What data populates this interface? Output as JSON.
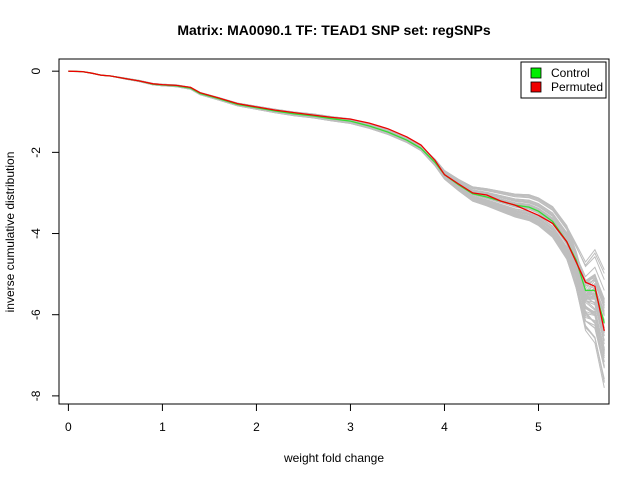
{
  "chart_data": {
    "type": "line",
    "title": "Matrix: MA0090.1 TF: TEAD1 SNP set: regSNPs",
    "xlabel": "weight fold change",
    "ylabel": "inverse cumulative distribution",
    "xlim": [
      -0.1,
      5.75
    ],
    "ylim": [
      -8.2,
      0.3
    ],
    "x_ticks": [
      0,
      1,
      2,
      3,
      4,
      5
    ],
    "y_ticks": [
      0,
      -2,
      -4,
      -6,
      -8
    ],
    "x_tick_labels": [
      "0",
      "1",
      "2",
      "3",
      "4",
      "5"
    ],
    "y_tick_labels": [
      "0",
      "-2",
      "-4",
      "-6",
      "-8"
    ],
    "legend": {
      "position": "top-right",
      "entries": [
        {
          "label": "Control",
          "color": "#00ee00"
        },
        {
          "label": "Permuted",
          "color": "#ee0000"
        }
      ]
    },
    "background_series": {
      "count": 60,
      "color": "#bebebe",
      "description_note": ""
    },
    "series": [
      {
        "name": "Control",
        "color": "#33dd33",
        "x": [
          0.0,
          0.15,
          0.25,
          0.35,
          0.45,
          0.6,
          0.75,
          0.9,
          1.0,
          1.15,
          1.3,
          1.4,
          1.6,
          1.8,
          2.0,
          2.2,
          2.4,
          2.6,
          2.8,
          3.0,
          3.2,
          3.4,
          3.6,
          3.75,
          3.9,
          4.0,
          4.15,
          4.3,
          4.45,
          4.6,
          4.75,
          4.9,
          5.0,
          5.15,
          5.3,
          5.4,
          5.5,
          5.6,
          5.7
        ],
        "values": [
          0.0,
          -0.01,
          -0.05,
          -0.1,
          -0.12,
          -0.18,
          -0.24,
          -0.32,
          -0.34,
          -0.36,
          -0.42,
          -0.55,
          -0.68,
          -0.82,
          -0.9,
          -0.98,
          -1.05,
          -1.1,
          -1.17,
          -1.23,
          -1.35,
          -1.5,
          -1.7,
          -1.9,
          -2.25,
          -2.55,
          -2.8,
          -3.02,
          -3.1,
          -3.2,
          -3.3,
          -3.35,
          -3.45,
          -3.7,
          -4.2,
          -4.65,
          -5.4,
          -5.4,
          -6.2
        ]
      },
      {
        "name": "Permuted",
        "color": "#ee0000",
        "x": [
          0.0,
          0.15,
          0.25,
          0.35,
          0.45,
          0.6,
          0.75,
          0.9,
          1.0,
          1.15,
          1.3,
          1.4,
          1.6,
          1.8,
          2.0,
          2.2,
          2.4,
          2.6,
          2.8,
          3.0,
          3.2,
          3.4,
          3.6,
          3.75,
          3.9,
          4.0,
          4.15,
          4.3,
          4.45,
          4.6,
          4.75,
          4.9,
          5.0,
          5.15,
          5.3,
          5.4,
          5.5,
          5.6,
          5.7
        ],
        "values": [
          0.0,
          -0.01,
          -0.05,
          -0.1,
          -0.12,
          -0.18,
          -0.24,
          -0.31,
          -0.33,
          -0.35,
          -0.4,
          -0.53,
          -0.66,
          -0.8,
          -0.88,
          -0.96,
          -1.02,
          -1.08,
          -1.14,
          -1.18,
          -1.28,
          -1.42,
          -1.62,
          -1.82,
          -2.2,
          -2.55,
          -2.78,
          -3.0,
          -3.05,
          -3.2,
          -3.3,
          -3.45,
          -3.55,
          -3.75,
          -4.2,
          -4.7,
          -5.2,
          -5.3,
          -6.4
        ]
      }
    ]
  }
}
